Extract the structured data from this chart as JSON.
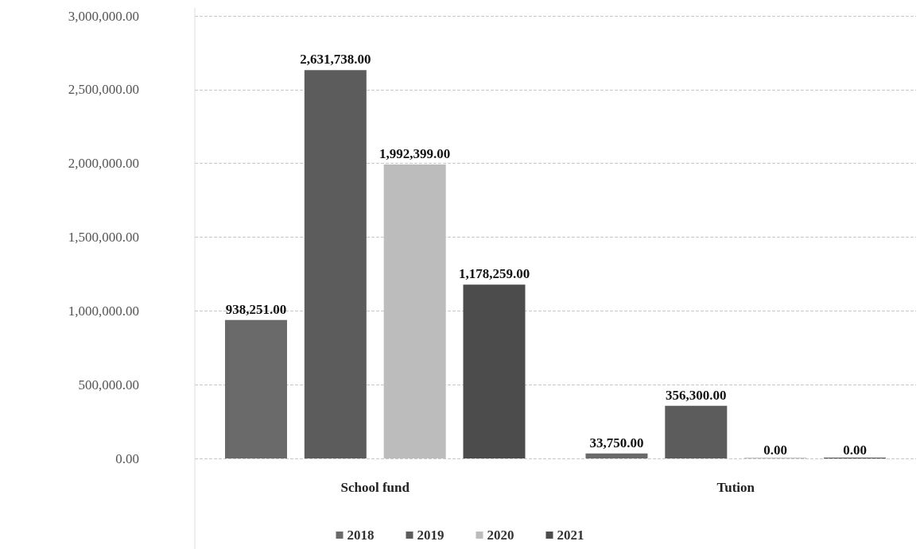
{
  "chart_data": {
    "type": "bar",
    "categories": [
      "School fund",
      "Tution"
    ],
    "series": [
      {
        "name": "2018",
        "color": "#6a6a6a",
        "values": [
          938251,
          33750
        ],
        "value_labels": [
          "938,251.00",
          "33,750.00"
        ]
      },
      {
        "name": "2019",
        "color": "#5c5c5c",
        "values": [
          2631738,
          356300
        ],
        "value_labels": [
          "2,631,738.00",
          "356,300.00"
        ]
      },
      {
        "name": "2020",
        "color": "#bcbcbc",
        "values": [
          1992399,
          0
        ],
        "value_labels": [
          "1,992,399.00",
          "0.00"
        ]
      },
      {
        "name": "2021",
        "color": "#4c4c4c",
        "values": [
          1178259,
          0
        ],
        "value_labels": [
          "1,178,259.00",
          "0.00"
        ]
      }
    ],
    "ylim": [
      0,
      3000000
    ],
    "yticks": [
      {
        "value": 0,
        "label": "0.00"
      },
      {
        "value": 500000,
        "label": "500,000.00"
      },
      {
        "value": 1000000,
        "label": "1,000,000.00"
      },
      {
        "value": 1500000,
        "label": "1,500,000.00"
      },
      {
        "value": 2000000,
        "label": "2,000,000.00"
      },
      {
        "value": 2500000,
        "label": "2,500,000.00"
      },
      {
        "value": 3000000,
        "label": "3,000,000.00"
      }
    ],
    "grid": "y",
    "legend": "bottom"
  }
}
